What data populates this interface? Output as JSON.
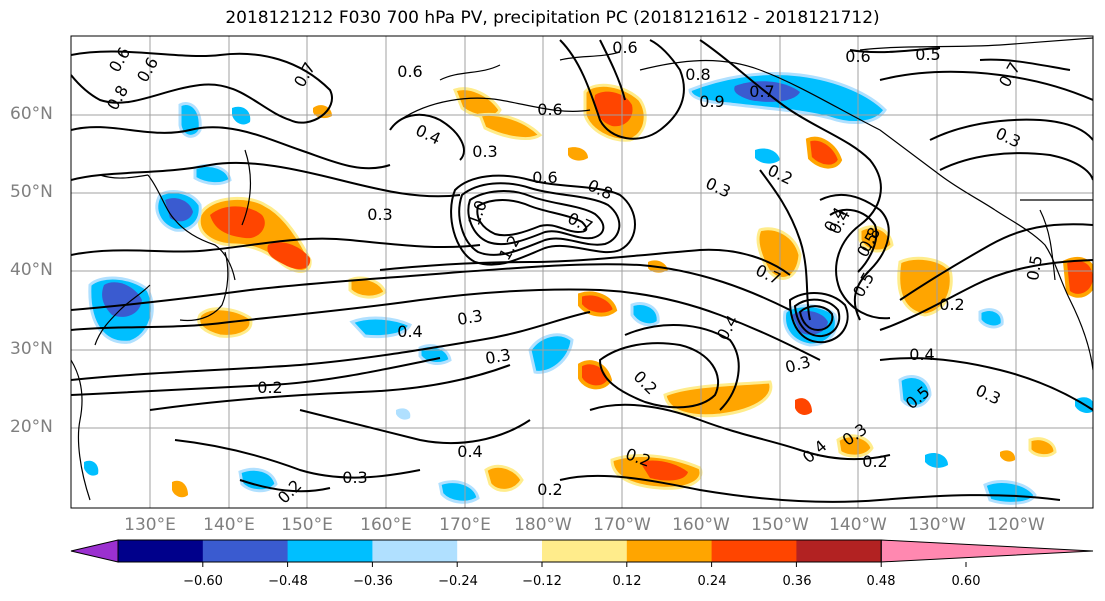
{
  "title": "2018121212 F030 700 hPa PV, precipitation PC (2018121612 - 2018121712)",
  "lat_labels": [
    "60°N",
    "50°N",
    "40°N",
    "30°N",
    "20°N"
  ],
  "lon_labels": [
    "130°E",
    "140°E",
    "150°E",
    "160°E",
    "170°E",
    "180°W",
    "170°W",
    "160°W",
    "150°W",
    "140°W",
    "130°W",
    "120°W"
  ],
  "colorbar": {
    "ticks": [
      "−0.60",
      "−0.48",
      "−0.36",
      "−0.24",
      "−0.12",
      "0.12",
      "0.24",
      "0.36",
      "0.48",
      "0.60"
    ],
    "colors": [
      "#9b30d0",
      "#00008b",
      "#3a5bd0",
      "#00bfff",
      "#b0e0ff",
      "#ffffff",
      "#ffec8b",
      "#ffa500",
      "#ff4500",
      "#b22222",
      "#ff88b0"
    ]
  },
  "contour_labels": [
    {
      "text": "0.6"
    },
    {
      "text": "0.6"
    },
    {
      "text": "0.8"
    },
    {
      "text": "0.7"
    },
    {
      "text": "0.6"
    },
    {
      "text": "0.6"
    },
    {
      "text": "0.8"
    },
    {
      "text": "0.6"
    },
    {
      "text": "0.5"
    },
    {
      "text": "0.7"
    },
    {
      "text": "0.9"
    },
    {
      "text": "0.7"
    },
    {
      "text": "0.4"
    },
    {
      "text": "0.3"
    },
    {
      "text": "0.6"
    },
    {
      "text": "0.3"
    },
    {
      "text": "0.2"
    },
    {
      "text": "0.4"
    },
    {
      "text": "0.3"
    },
    {
      "text": "1.0"
    },
    {
      "text": "1.2"
    },
    {
      "text": "0.7"
    },
    {
      "text": "0.8"
    },
    {
      "text": "0.6"
    },
    {
      "text": "0.4"
    },
    {
      "text": "0.8"
    },
    {
      "text": "0.5"
    },
    {
      "text": "0.7"
    },
    {
      "text": "0.5"
    },
    {
      "text": "0.5"
    },
    {
      "text": "0.2"
    },
    {
      "text": "0.3"
    },
    {
      "text": "0.3"
    },
    {
      "text": "0.4"
    },
    {
      "text": "0.3"
    },
    {
      "text": "0.2"
    },
    {
      "text": "0.4"
    },
    {
      "text": "0.5"
    },
    {
      "text": "0.3"
    },
    {
      "text": "0.2"
    },
    {
      "text": "0.4"
    },
    {
      "text": "0.3"
    },
    {
      "text": "0.2"
    },
    {
      "text": "0.4"
    },
    {
      "text": "0.2"
    },
    {
      "text": "0.3"
    },
    {
      "text": "0.2"
    },
    {
      "text": "0.2"
    },
    {
      "text": "0.3"
    },
    {
      "text": "0.4"
    }
  ]
}
